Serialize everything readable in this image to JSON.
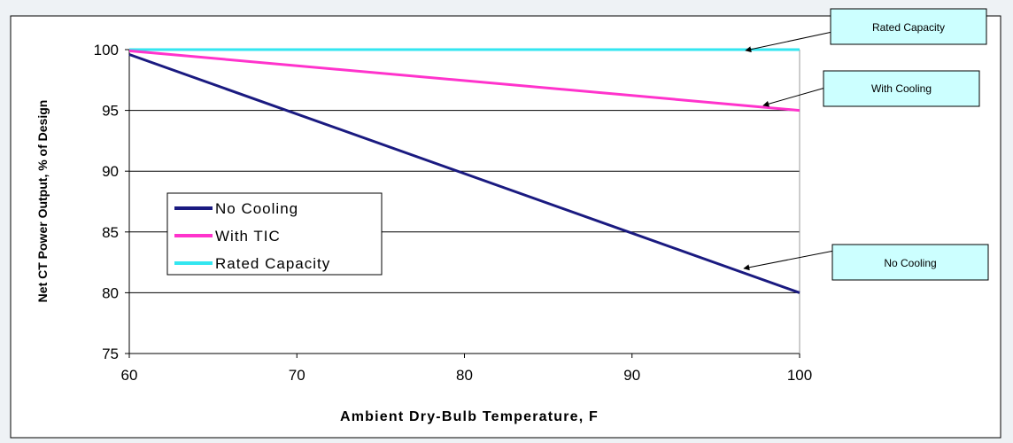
{
  "chart_data": {
    "type": "line",
    "title": "",
    "xlabel": "Ambient Dry-Bulb Temperature, F",
    "ylabel": "Net CT Power Output, % of Design",
    "xlim": [
      60,
      100
    ],
    "ylim": [
      75,
      100
    ],
    "x_ticks": [
      60,
      70,
      80,
      90,
      100
    ],
    "y_ticks": [
      75,
      80,
      85,
      90,
      95,
      100
    ],
    "grid": "horizontal",
    "legend_position": "left-middle",
    "series": [
      {
        "name": "No Cooling",
        "color": "#1a1a80",
        "x": [
          60,
          100
        ],
        "y": [
          99.6,
          80
        ]
      },
      {
        "name": "With TIC",
        "color": "#ff33cc",
        "x": [
          60,
          100
        ],
        "y": [
          99.9,
          95
        ]
      },
      {
        "name": "Rated Capacity",
        "color": "#33e6f0",
        "x": [
          60,
          100
        ],
        "y": [
          100,
          100
        ]
      }
    ],
    "annotations": [
      {
        "text": "Rated Capacity",
        "points_to": {
          "x": 97,
          "y": 100
        }
      },
      {
        "text": "With Cooling",
        "points_to": {
          "x": 97,
          "y": 95.5
        }
      },
      {
        "text": "No Cooling",
        "points_to": {
          "x": 97,
          "y": 81.9
        }
      }
    ]
  }
}
